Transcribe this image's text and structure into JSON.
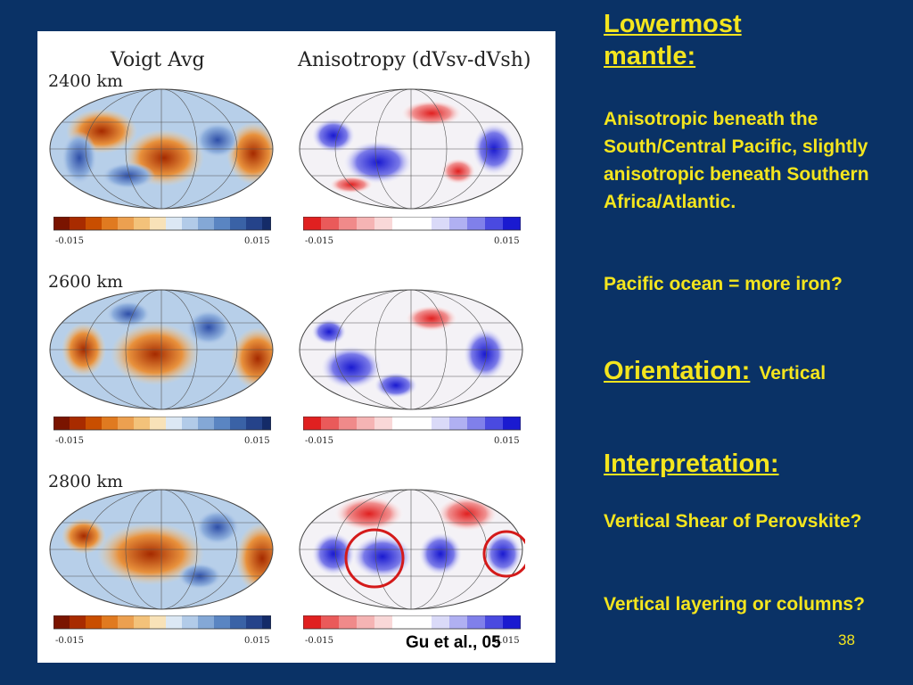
{
  "figure": {
    "col_titles": [
      "Voigt Avg",
      "Anisotropy (dVsv-dVsh)"
    ],
    "depths": [
      "2400 km",
      "2600 km",
      "2800 km"
    ],
    "colorbar_min": "-0.015",
    "colorbar_max": "0.015",
    "citation": "Gu et al., 05"
  },
  "sidebar": {
    "heading1": "Lowermost mantle:",
    "p1": "Anisotropic beneath the South/Central Pacific, slightly anisotropic beneath Southern Africa/Atlantic.",
    "p2": "Pacific ocean = more iron?",
    "orientation_label": "Orientation:",
    "orientation_value": "Vertical",
    "heading2": "Interpretation:",
    "p3": "Vertical Shear of Perovskite?",
    "p4": "Vertical layering or columns?"
  },
  "page_number": "38",
  "colors": {
    "background": "#0a3266",
    "accent_text": "#f4e51e",
    "highlight_circle": "#d41a1a"
  }
}
